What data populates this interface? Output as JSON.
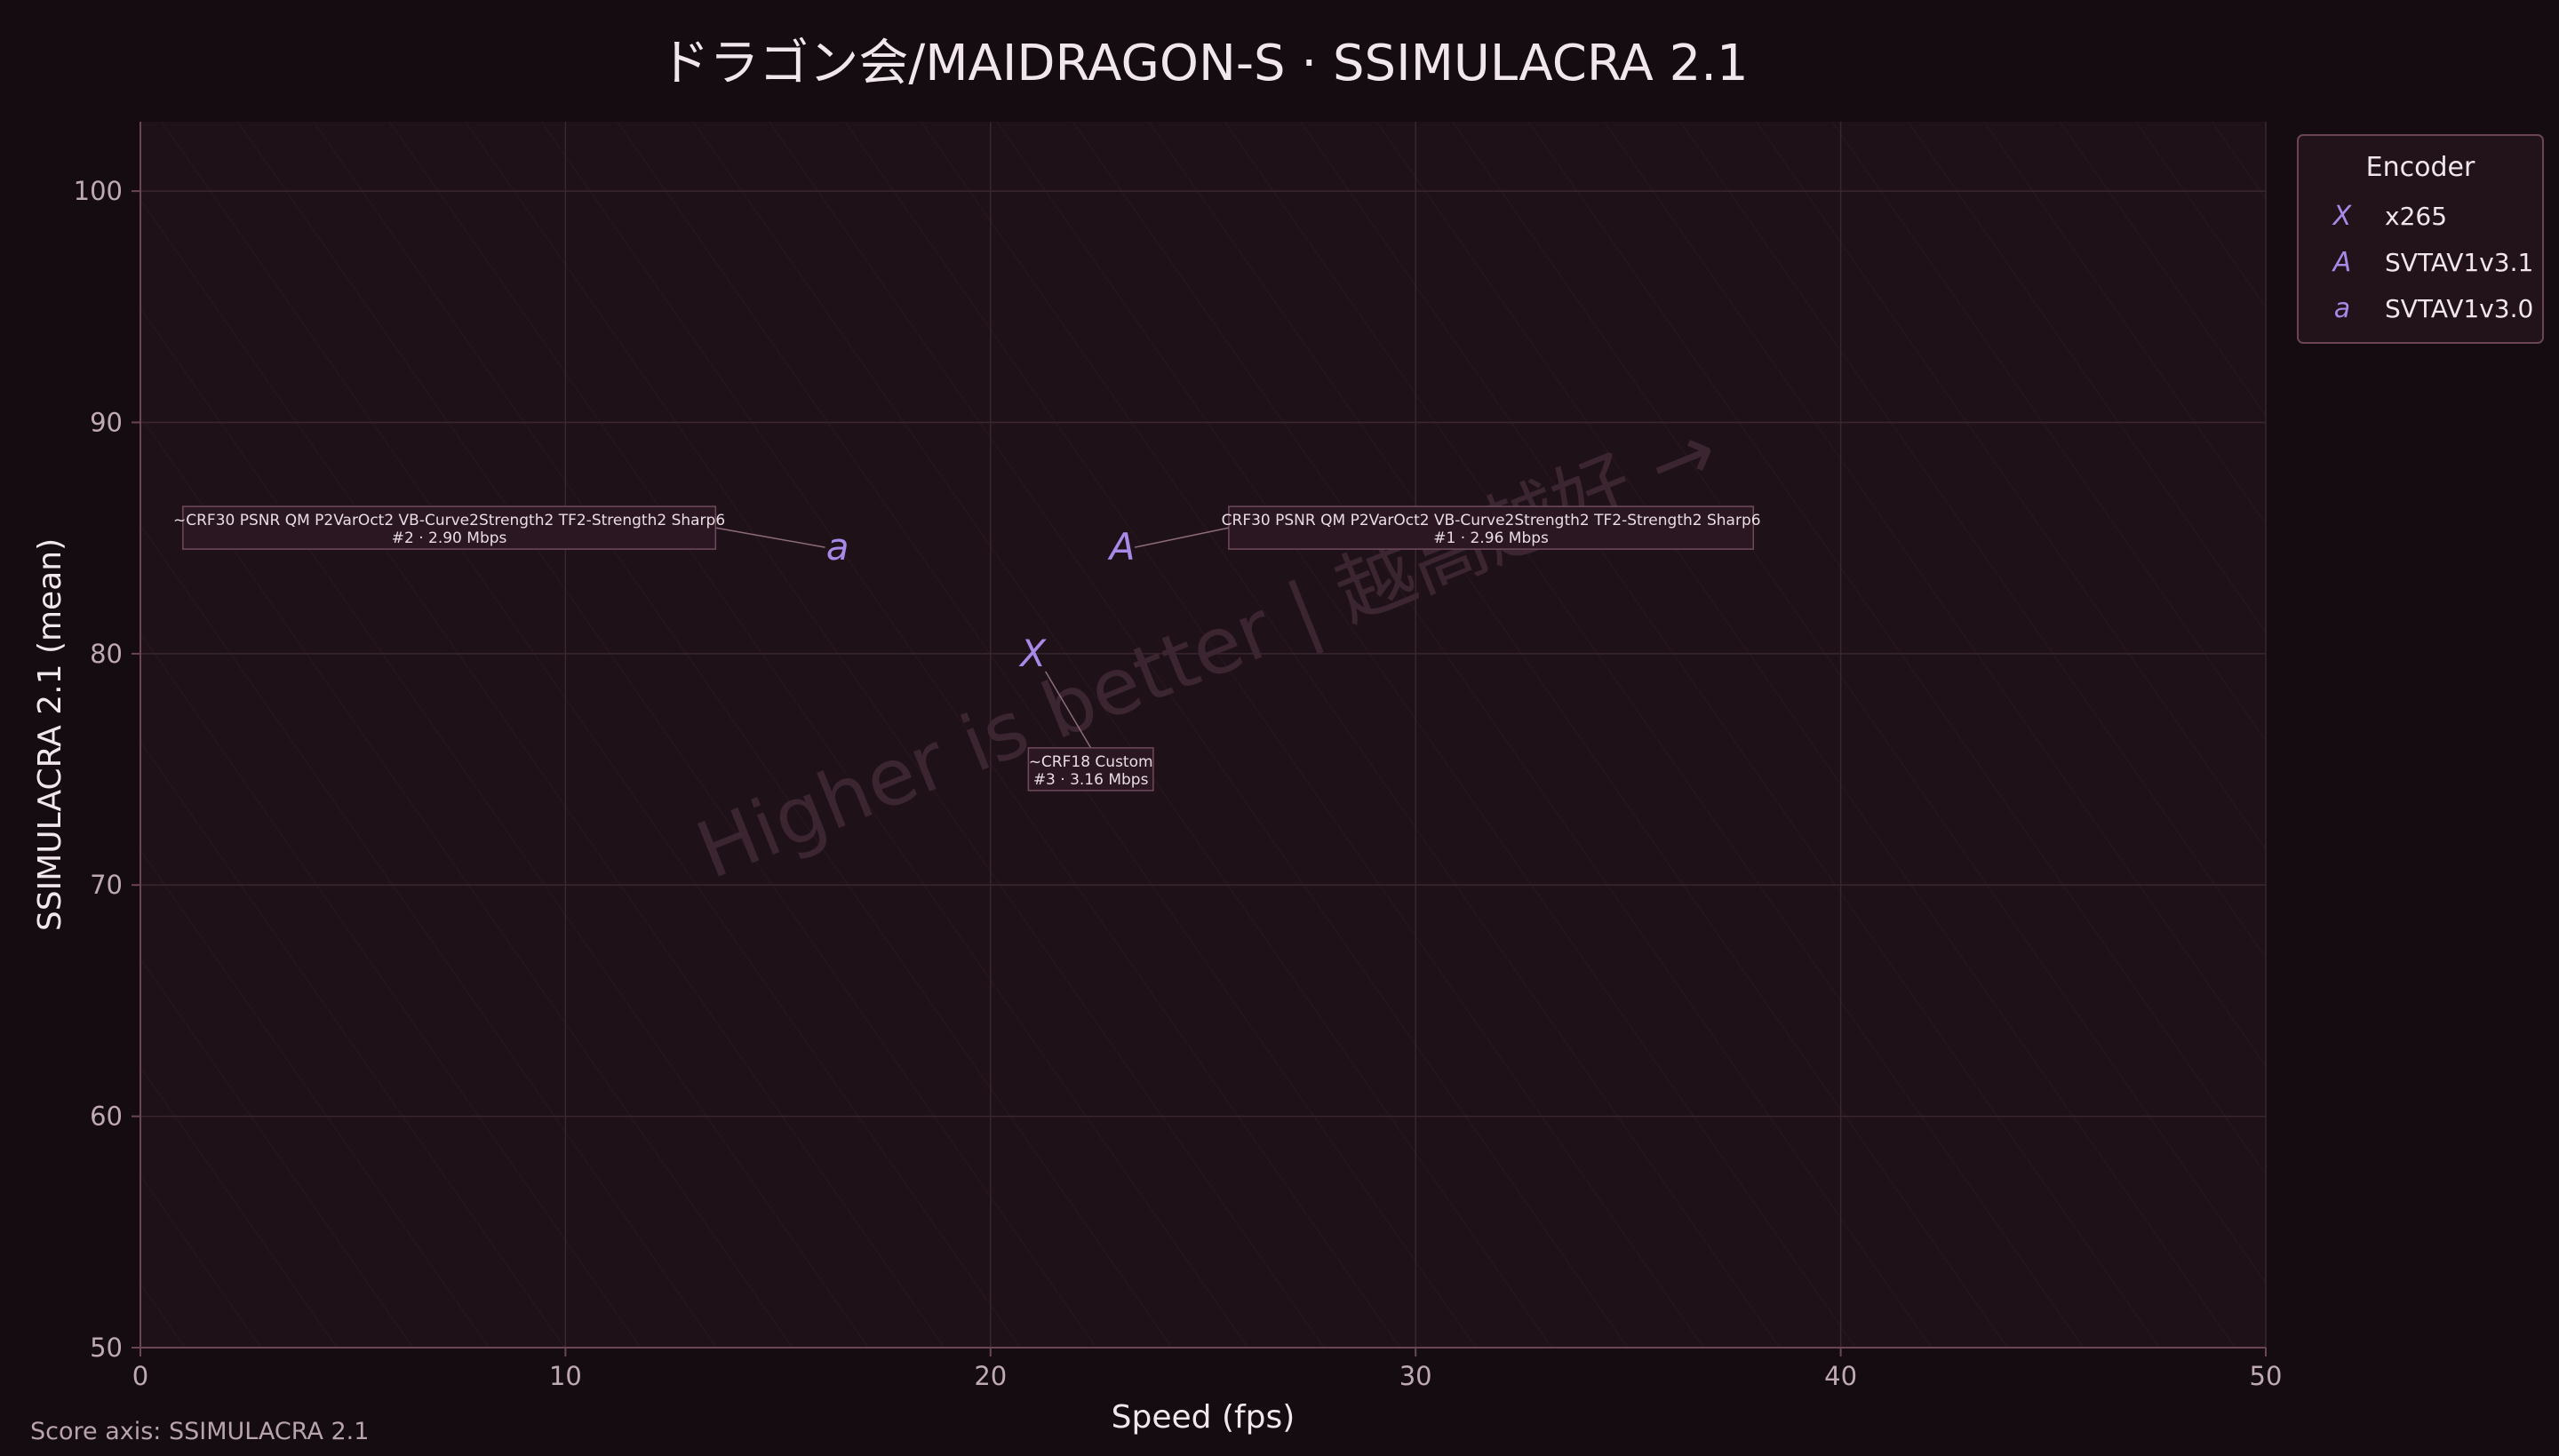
{
  "chart_data": {
    "type": "scatter",
    "title": "ドラゴン会/MAIDRAGON-S · SSIMULACRA 2.1",
    "xlabel": "Speed (fps)",
    "ylabel": "SSIMULACRA 2.1 (mean)",
    "xlim": [
      0,
      50
    ],
    "ylim": [
      50,
      103
    ],
    "xticks": [
      0,
      10,
      20,
      30,
      40,
      50
    ],
    "yticks": [
      50,
      60,
      70,
      80,
      90,
      100
    ],
    "grid": true,
    "legend": {
      "title": "Encoder",
      "placement": "outside-top-right",
      "entries": [
        {
          "marker": "X",
          "label": "x265"
        },
        {
          "marker": "A",
          "label": "SVTAV1v3.1"
        },
        {
          "marker": "a",
          "label": "SVTAV1v3.0"
        }
      ]
    },
    "series": [
      {
        "name": "x265",
        "marker": "X",
        "points": [
          {
            "x": 21.0,
            "y": 80.0,
            "label": [
              "~CRF18 Custom",
              "#3 · 3.16 Mbps"
            ]
          }
        ]
      },
      {
        "name": "SVTAV1v3.1",
        "marker": "A",
        "points": [
          {
            "x": 23.1,
            "y": 84.6,
            "label": [
              "CRF30 PSNR QM P2VarOct2 VB-Curve2Strength2 TF2-Strength2 Sharp6",
              "#1 · 2.96 Mbps"
            ]
          }
        ]
      },
      {
        "name": "SVTAV1v3.0",
        "marker": "a",
        "points": [
          {
            "x": 16.4,
            "y": 84.6,
            "label": [
              "~CRF30 PSNR QM P2VarOct2 VB-Curve2Strength2 TF2-Strength2 Sharp6",
              "#2 · 2.90 Mbps"
            ]
          }
        ]
      }
    ],
    "watermark": "Higher is better  |  越高越好  →",
    "footnote": "Score axis: SSIMULACRA 2.1"
  },
  "colors": {
    "background": "#140c10",
    "plot_background": "#1f1118",
    "grid": "#3a2630",
    "axis": "#6b4556",
    "marker": "#a989e8",
    "text": "#e8dbe2",
    "tick_text": "#bfa9b4"
  }
}
